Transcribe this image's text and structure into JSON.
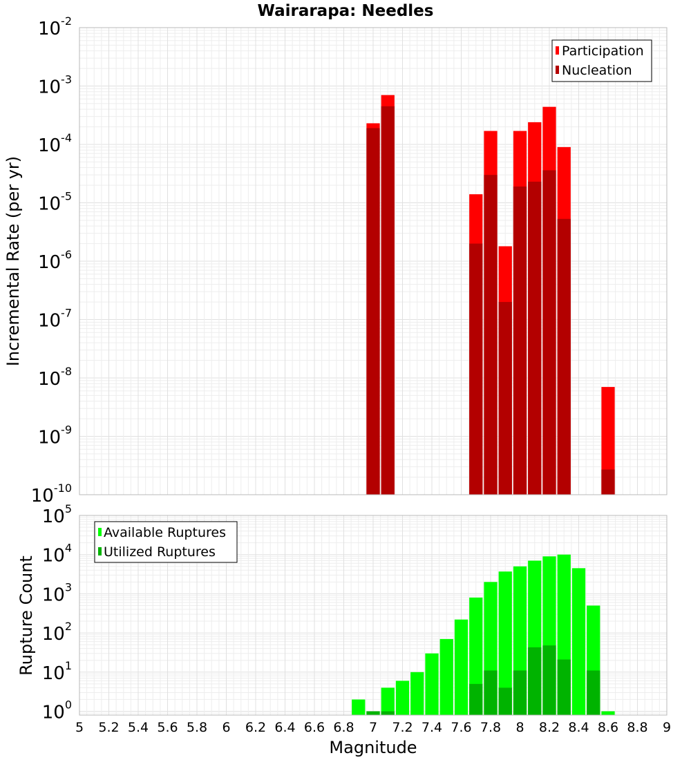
{
  "title": "Wairarapa: Needles",
  "chart_data": [
    {
      "type": "bar",
      "title": "Wairarapa: Needles",
      "ylabel": "Incremental Rate (per yr)",
      "xlabel": "",
      "yscale": "log",
      "ylim": [
        1e-10,
        0.01
      ],
      "xlim": [
        5,
        9
      ],
      "grid": true,
      "legend_position": "top-right",
      "series": [
        {
          "name": "Participation",
          "color": "#ff0000",
          "x": [
            7.0,
            7.1,
            7.7,
            7.8,
            7.9,
            8.0,
            8.1,
            8.2,
            8.3,
            8.6
          ],
          "values": [
            0.00023,
            0.0007,
            1.4e-05,
            0.00017,
            1.8e-06,
            0.00017,
            0.00024,
            0.00044,
            9e-05,
            7e-09
          ]
        },
        {
          "name": "Nucleation",
          "color": "#b30000",
          "x": [
            7.0,
            7.1,
            7.7,
            7.8,
            7.9,
            8.0,
            8.1,
            8.2,
            8.3,
            8.6
          ],
          "values": [
            0.00019,
            0.00045,
            2e-06,
            3e-05,
            2e-07,
            1.9e-05,
            2.3e-05,
            3.6e-05,
            5.3e-06,
            2.7e-10
          ]
        }
      ]
    },
    {
      "type": "bar",
      "title": "",
      "ylabel": "Rupture Count",
      "xlabel": "Magnitude",
      "yscale": "log",
      "ylim": [
        0.8,
        100000
      ],
      "xlim": [
        5,
        9
      ],
      "grid": true,
      "legend_position": "top-left",
      "series": [
        {
          "name": "Available Ruptures",
          "color": "#00ff00",
          "x": [
            6.9,
            7.0,
            7.1,
            7.2,
            7.3,
            7.4,
            7.5,
            7.6,
            7.7,
            7.8,
            7.9,
            8.0,
            8.1,
            8.2,
            8.3,
            8.4,
            8.5,
            8.6
          ],
          "values": [
            2,
            1,
            4,
            6,
            10,
            30,
            70,
            220,
            800,
            2000,
            3700,
            5000,
            7000,
            9000,
            10000,
            4500,
            500,
            1
          ]
        },
        {
          "name": "Utilized Ruptures",
          "color": "#00b300",
          "x": [
            7.0,
            7.1,
            7.7,
            7.8,
            7.9,
            8.0,
            8.1,
            8.2,
            8.3,
            8.5
          ],
          "values": [
            1,
            1,
            5,
            11,
            4,
            11,
            43,
            48,
            21,
            11
          ]
        }
      ]
    }
  ],
  "x_ticks": [
    "5",
    "5.2",
    "5.4",
    "5.6",
    "5.8",
    "6",
    "6.2",
    "6.4",
    "6.6",
    "6.8",
    "7",
    "7.2",
    "7.4",
    "7.6",
    "7.8",
    "8",
    "8.2",
    "8.4",
    "8.6",
    "8.8",
    "9"
  ],
  "top_y_ticks": [
    {
      "base": "10",
      "exp": "-10"
    },
    {
      "base": "10",
      "exp": "-9"
    },
    {
      "base": "10",
      "exp": "-8"
    },
    {
      "base": "10",
      "exp": "-7"
    },
    {
      "base": "10",
      "exp": "-6"
    },
    {
      "base": "10",
      "exp": "-5"
    },
    {
      "base": "10",
      "exp": "-4"
    },
    {
      "base": "10",
      "exp": "-3"
    },
    {
      "base": "10",
      "exp": "-2"
    }
  ],
  "bottom_y_ticks": [
    {
      "base": "10",
      "exp": "0"
    },
    {
      "base": "10",
      "exp": "1"
    },
    {
      "base": "10",
      "exp": "2"
    },
    {
      "base": "10",
      "exp": "3"
    },
    {
      "base": "10",
      "exp": "4"
    },
    {
      "base": "10",
      "exp": "5"
    }
  ]
}
